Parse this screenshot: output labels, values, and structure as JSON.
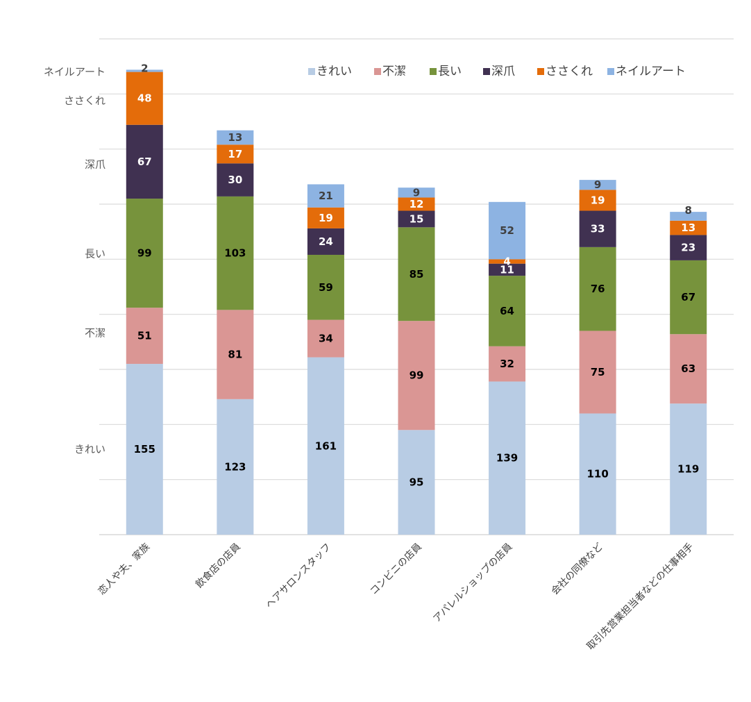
{
  "chart_data": {
    "type": "bar",
    "stacked": true,
    "categories": [
      "恋人や夫、家族",
      "飲食店の店員",
      "ヘアサロンスタッフ",
      "コンビニの店員",
      "アパレルショップの店員",
      "会社の同僚など",
      "取引先営業担当者などの仕事相手"
    ],
    "series": [
      {
        "name": "きれい",
        "color": "#b8cce4",
        "label_color": "#000000",
        "values": [
          155,
          123,
          161,
          95,
          139,
          110,
          119
        ]
      },
      {
        "name": "不潔",
        "color": "#da9694",
        "label_color": "#000000",
        "values": [
          51,
          81,
          34,
          99,
          32,
          75,
          63
        ]
      },
      {
        "name": "長い",
        "color": "#77933c",
        "label_color": "#000000",
        "values": [
          99,
          103,
          59,
          85,
          64,
          76,
          67
        ]
      },
      {
        "name": "深爪",
        "color": "#403151",
        "label_color": "#ffffff",
        "values": [
          67,
          30,
          24,
          15,
          11,
          33,
          23
        ]
      },
      {
        "name": "ささくれ",
        "color": "#e46c0a",
        "label_color": "#ffffff",
        "values": [
          48,
          17,
          19,
          12,
          4,
          19,
          13
        ]
      },
      {
        "name": "ネイルアート",
        "color": "#8db3e2",
        "label_color": "#404040",
        "values": [
          2,
          13,
          21,
          9,
          52,
          9,
          8
        ]
      }
    ],
    "ylim": [
      0,
      450
    ],
    "grid": true,
    "legend": "top",
    "left_labels": [
      {
        "text": "きれい",
        "value": 77.5
      },
      {
        "text": "不潔",
        "value": 183
      },
      {
        "text": "長い",
        "value": 255
      },
      {
        "text": "深爪",
        "value": 336
      },
      {
        "text": "ささくれ",
        "value": 394
      },
      {
        "text": "ネイルアート",
        "value": 420
      }
    ]
  }
}
